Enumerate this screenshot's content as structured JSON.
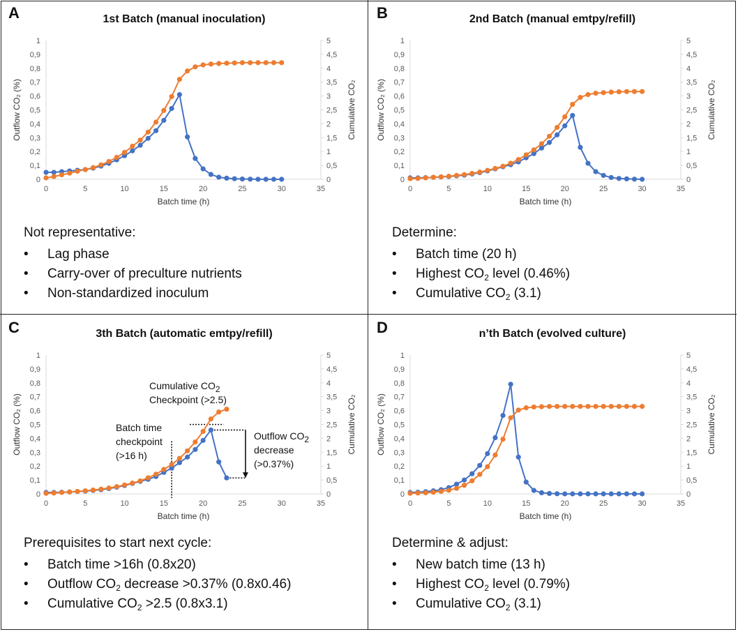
{
  "colors": {
    "outflow": "#4472C4",
    "cumulative": "#ED7D31",
    "axis": "#595959"
  },
  "panels": [
    {
      "letter": "A",
      "title": "1st Batch (manual inoculation)",
      "notes_heading": "Not representative:",
      "notes": [
        {
          "pre": "Lag phase",
          "sub": "",
          "post": ""
        },
        {
          "pre": "Carry-over of preculture nutrients",
          "sub": "",
          "post": ""
        },
        {
          "pre": "Non-standardized inoculum",
          "sub": "",
          "post": ""
        }
      ]
    },
    {
      "letter": "B",
      "title": "2nd Batch (manual emtpy/refill)",
      "notes_heading": "Determine:",
      "notes": [
        {
          "pre": "Batch time (20 h)",
          "sub": "",
          "post": ""
        },
        {
          "pre": "Highest CO",
          "sub": "2",
          "post": " level (0.46%)"
        },
        {
          "pre": "Cumulative CO",
          "sub": "2",
          "post": " (3.1)"
        }
      ]
    },
    {
      "letter": "C",
      "title": "3th Batch (automatic emtpy/refill)",
      "notes_heading": "Prerequisites to start next cycle:",
      "notes": [
        {
          "pre": "Batch time >16h (0.8x20)",
          "sub": "",
          "post": ""
        },
        {
          "pre": "Outflow CO",
          "sub": "2",
          "post": " decrease >0.37% (0.8x0.46)"
        },
        {
          "pre": "Cumulative CO",
          "sub": "2",
          "post": " >2.5 (0.8x3.1)"
        }
      ],
      "annotations": {
        "cumulative_checkpoint": {
          "line1_pre": "Cumulative CO",
          "line1_sub": "2",
          "line2": "Checkpoint (>2.5)"
        },
        "batch_time_checkpoint": {
          "line1": "Batch time",
          "line2": "checkpoint",
          "line3": "(>16 h)"
        },
        "outflow_decrease": {
          "line1_pre": "Outflow CO",
          "line1_sub": "2",
          "line2": "decrease",
          "line3": "(>0.37%)"
        }
      }
    },
    {
      "letter": "D",
      "title": "n’th Batch (evolved culture)",
      "notes_heading": "Determine & adjust:",
      "notes": [
        {
          "pre": "New batch time (13 h)",
          "sub": "",
          "post": ""
        },
        {
          "pre": "Highest CO",
          "sub": "2",
          "post": " level (0.79%)"
        },
        {
          "pre": "Cumulative CO",
          "sub": "2",
          "post": " (3.1)"
        }
      ]
    }
  ],
  "chart_data": [
    {
      "type": "line",
      "title": "1st Batch (manual inoculation)",
      "xlabel": "Batch time (h)",
      "ylabel": "Outflow CO₂ (%)",
      "y2label": "Cumulative CO₂",
      "xlim": [
        0,
        35
      ],
      "ylim": [
        0,
        1
      ],
      "y2lim": [
        0,
        5
      ],
      "xticks": [
        "0",
        "5",
        "10",
        "15",
        "20",
        "25",
        "30",
        "35"
      ],
      "yticks": [
        "0",
        "0,1",
        "0,2",
        "0,3",
        "0,4",
        "0,5",
        "0,6",
        "0,7",
        "0,8",
        "0,9",
        "1"
      ],
      "y2ticks": [
        "0",
        "0,5",
        "1",
        "1,5",
        "2",
        "2,5",
        "3",
        "3,5",
        "4",
        "4,5",
        "5"
      ],
      "grid": false,
      "x": [
        0,
        1,
        2,
        3,
        4,
        5,
        6,
        7,
        8,
        9,
        10,
        11,
        12,
        13,
        14,
        15,
        16,
        17,
        18,
        19,
        20,
        21,
        22,
        23,
        24,
        25,
        26,
        27,
        28,
        29,
        30
      ],
      "series": [
        {
          "axis": "left",
          "color": "#4472C4",
          "values": [
            0.05,
            0.05,
            0.055,
            0.06,
            0.065,
            0.07,
            0.08,
            0.095,
            0.115,
            0.14,
            0.17,
            0.205,
            0.245,
            0.295,
            0.35,
            0.425,
            0.51,
            0.61,
            0.305,
            0.15,
            0.075,
            0.035,
            0.015,
            0.008,
            0.004,
            0.002,
            0.001,
            0,
            0,
            0,
            0
          ]
        },
        {
          "axis": "right",
          "color": "#ED7D31",
          "values": [
            0.05,
            0.1,
            0.16,
            0.22,
            0.29,
            0.35,
            0.42,
            0.52,
            0.64,
            0.79,
            0.97,
            1.19,
            1.41,
            1.7,
            2.06,
            2.48,
            2.98,
            3.6,
            3.9,
            4.05,
            4.12,
            4.15,
            4.17,
            4.18,
            4.19,
            4.2,
            4.2,
            4.2,
            4.2,
            4.2,
            4.2
          ]
        }
      ]
    },
    {
      "type": "line",
      "title": "2nd Batch (manual emtpy/refill)",
      "xlabel": "Batch time (h)",
      "ylabel": "Outflow CO₂ (%)",
      "y2label": "Cumulative CO₂",
      "xlim": [
        0,
        35
      ],
      "ylim": [
        0,
        1
      ],
      "y2lim": [
        0,
        5
      ],
      "xticks": [
        "0",
        "5",
        "10",
        "15",
        "20",
        "25",
        "30",
        "35"
      ],
      "yticks": [
        "0",
        "0,1",
        "0,2",
        "0,3",
        "0,4",
        "0,5",
        "0,6",
        "0,7",
        "0,8",
        "0,9",
        "1"
      ],
      "y2ticks": [
        "0",
        "0,5",
        "1",
        "1,5",
        "2",
        "2,5",
        "3",
        "3,5",
        "4",
        "4,5",
        "5"
      ],
      "grid": false,
      "x": [
        0,
        1,
        2,
        3,
        4,
        5,
        6,
        7,
        8,
        9,
        10,
        11,
        12,
        13,
        14,
        15,
        16,
        17,
        18,
        19,
        20,
        21,
        22,
        23,
        24,
        25,
        26,
        27,
        28,
        29,
        30
      ],
      "series": [
        {
          "axis": "left",
          "color": "#4472C4",
          "values": [
            0.01,
            0.01,
            0.012,
            0.014,
            0.017,
            0.02,
            0.025,
            0.03,
            0.038,
            0.048,
            0.06,
            0.075,
            0.09,
            0.105,
            0.125,
            0.155,
            0.185,
            0.225,
            0.265,
            0.32,
            0.385,
            0.46,
            0.23,
            0.115,
            0.055,
            0.028,
            0.013,
            0.006,
            0.003,
            0.001,
            0
          ]
        },
        {
          "axis": "right",
          "color": "#ED7D31",
          "values": [
            0.02,
            0.03,
            0.05,
            0.07,
            0.09,
            0.11,
            0.14,
            0.17,
            0.21,
            0.26,
            0.32,
            0.39,
            0.47,
            0.58,
            0.71,
            0.88,
            1.06,
            1.28,
            1.55,
            1.87,
            2.25,
            2.7,
            2.95,
            3.05,
            3.1,
            3.12,
            3.14,
            3.15,
            3.16,
            3.16,
            3.16
          ]
        }
      ]
    },
    {
      "type": "line",
      "title": "3th Batch (automatic emtpy/refill)",
      "xlabel": "Batch time (h)",
      "ylabel": "Outflow CO₂ (%)",
      "y2label": "Cumulative CO₂",
      "xlim": [
        0,
        35
      ],
      "ylim": [
        0,
        1
      ],
      "y2lim": [
        0,
        5
      ],
      "xticks": [
        "0",
        "5",
        "10",
        "15",
        "20",
        "25",
        "30",
        "35"
      ],
      "yticks": [
        "0",
        "0,1",
        "0,2",
        "0,3",
        "0,4",
        "0,5",
        "0,6",
        "0,7",
        "0,8",
        "0,9",
        "1"
      ],
      "y2ticks": [
        "0",
        "0,5",
        "1",
        "1,5",
        "2",
        "2,5",
        "3",
        "3,5",
        "4",
        "4,5",
        "5"
      ],
      "grid": false,
      "x": [
        0,
        1,
        2,
        3,
        4,
        5,
        6,
        7,
        8,
        9,
        10,
        11,
        12,
        13,
        14,
        15,
        16,
        17,
        18,
        19,
        20,
        21,
        22,
        23
      ],
      "series": [
        {
          "axis": "left",
          "color": "#4472C4",
          "values": [
            0.01,
            0.01,
            0.012,
            0.014,
            0.017,
            0.02,
            0.025,
            0.03,
            0.038,
            0.048,
            0.06,
            0.075,
            0.09,
            0.105,
            0.125,
            0.155,
            0.185,
            0.225,
            0.265,
            0.32,
            0.385,
            0.46,
            0.23,
            0.115
          ]
        },
        {
          "axis": "right",
          "color": "#ED7D31",
          "values": [
            0.02,
            0.03,
            0.05,
            0.07,
            0.09,
            0.11,
            0.14,
            0.17,
            0.21,
            0.26,
            0.32,
            0.39,
            0.47,
            0.58,
            0.71,
            0.88,
            1.06,
            1.28,
            1.55,
            1.87,
            2.25,
            2.7,
            2.95,
            3.05
          ]
        }
      ],
      "markers": {
        "batch_time_checkpoint_x": 16,
        "cumulative_checkpoint_y2": 2.5,
        "outflow_peak_y": 0.46,
        "outflow_end_y": 0.115
      }
    },
    {
      "type": "line",
      "title": "n’th Batch (evolved culture)",
      "xlabel": "Batch time (h)",
      "ylabel": "Outflow CO₂ (%)",
      "y2label": "Cumulative CO₂",
      "xlim": [
        0,
        35
      ],
      "ylim": [
        0,
        1
      ],
      "y2lim": [
        0,
        5
      ],
      "xticks": [
        "0",
        "5",
        "10",
        "15",
        "20",
        "25",
        "30",
        "35"
      ],
      "yticks": [
        "0",
        "0,1",
        "0,2",
        "0,3",
        "0,4",
        "0,5",
        "0,6",
        "0,7",
        "0,8",
        "0,9",
        "1"
      ],
      "y2ticks": [
        "0",
        "0,5",
        "1",
        "1,5",
        "2",
        "2,5",
        "3",
        "3,5",
        "4",
        "4,5",
        "5"
      ],
      "grid": false,
      "x": [
        0,
        1,
        2,
        3,
        4,
        5,
        6,
        7,
        8,
        9,
        10,
        11,
        12,
        13,
        14,
        15,
        16,
        17,
        18,
        19,
        20,
        21,
        22,
        23,
        24,
        25,
        26,
        27,
        28,
        29,
        30
      ],
      "series": [
        {
          "axis": "left",
          "color": "#4472C4",
          "values": [
            0.01,
            0.012,
            0.016,
            0.022,
            0.03,
            0.045,
            0.07,
            0.1,
            0.145,
            0.205,
            0.29,
            0.405,
            0.565,
            0.79,
            0.265,
            0.085,
            0.025,
            0.008,
            0.003,
            0.001,
            0,
            0,
            0,
            0,
            0,
            0,
            0,
            0,
            0,
            0,
            0
          ]
        },
        {
          "axis": "right",
          "color": "#ED7D31",
          "values": [
            0.02,
            0.03,
            0.04,
            0.06,
            0.09,
            0.13,
            0.2,
            0.31,
            0.47,
            0.7,
            0.98,
            1.4,
            1.97,
            2.74,
            3.02,
            3.1,
            3.13,
            3.14,
            3.15,
            3.15,
            3.15,
            3.15,
            3.15,
            3.15,
            3.15,
            3.15,
            3.15,
            3.15,
            3.15,
            3.15,
            3.15
          ]
        }
      ]
    }
  ]
}
